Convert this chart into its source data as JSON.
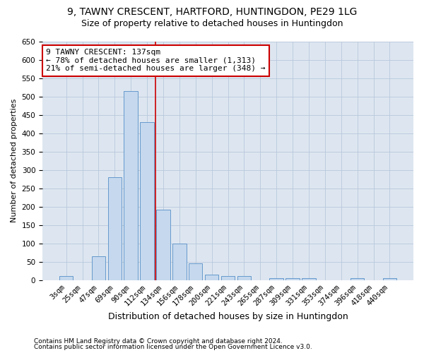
{
  "title": "9, TAWNY CRESCENT, HARTFORD, HUNTINGDON, PE29 1LG",
  "subtitle": "Size of property relative to detached houses in Huntingdon",
  "xlabel": "Distribution of detached houses by size in Huntingdon",
  "ylabel": "Number of detached properties",
  "footnote1": "Contains HM Land Registry data © Crown copyright and database right 2024.",
  "footnote2": "Contains public sector information licensed under the Open Government Licence v3.0.",
  "categories": [
    "3sqm",
    "25sqm",
    "47sqm",
    "69sqm",
    "90sqm",
    "112sqm",
    "134sqm",
    "156sqm",
    "178sqm",
    "200sqm",
    "221sqm",
    "243sqm",
    "265sqm",
    "287sqm",
    "309sqm",
    "331sqm",
    "353sqm",
    "374sqm",
    "396sqm",
    "418sqm",
    "440sqm"
  ],
  "values": [
    10,
    0,
    65,
    280,
    515,
    430,
    192,
    100,
    45,
    15,
    10,
    10,
    0,
    5,
    5,
    5,
    0,
    0,
    5,
    0,
    5
  ],
  "bar_color": "#c5d8ed",
  "bar_edge_color": "#6699cc",
  "vline_x": 6.0,
  "vline_color": "#cc0000",
  "annotation_text": "9 TAWNY CRESCENT: 137sqm\n← 78% of detached houses are smaller (1,313)\n21% of semi-detached houses are larger (348) →",
  "annotation_box_color": "#ffffff",
  "annotation_box_edge": "#cc0000",
  "ylim": [
    0,
    650
  ],
  "yticks": [
    0,
    50,
    100,
    150,
    200,
    250,
    300,
    350,
    400,
    450,
    500,
    550,
    600,
    650
  ],
  "background_color": "#dde6f0",
  "title_fontsize": 10,
  "subtitle_fontsize": 9,
  "ylabel_fontsize": 8,
  "xlabel_fontsize": 9,
  "tick_fontsize": 7.5,
  "annot_fontsize": 8,
  "footnote_fontsize": 6.5
}
